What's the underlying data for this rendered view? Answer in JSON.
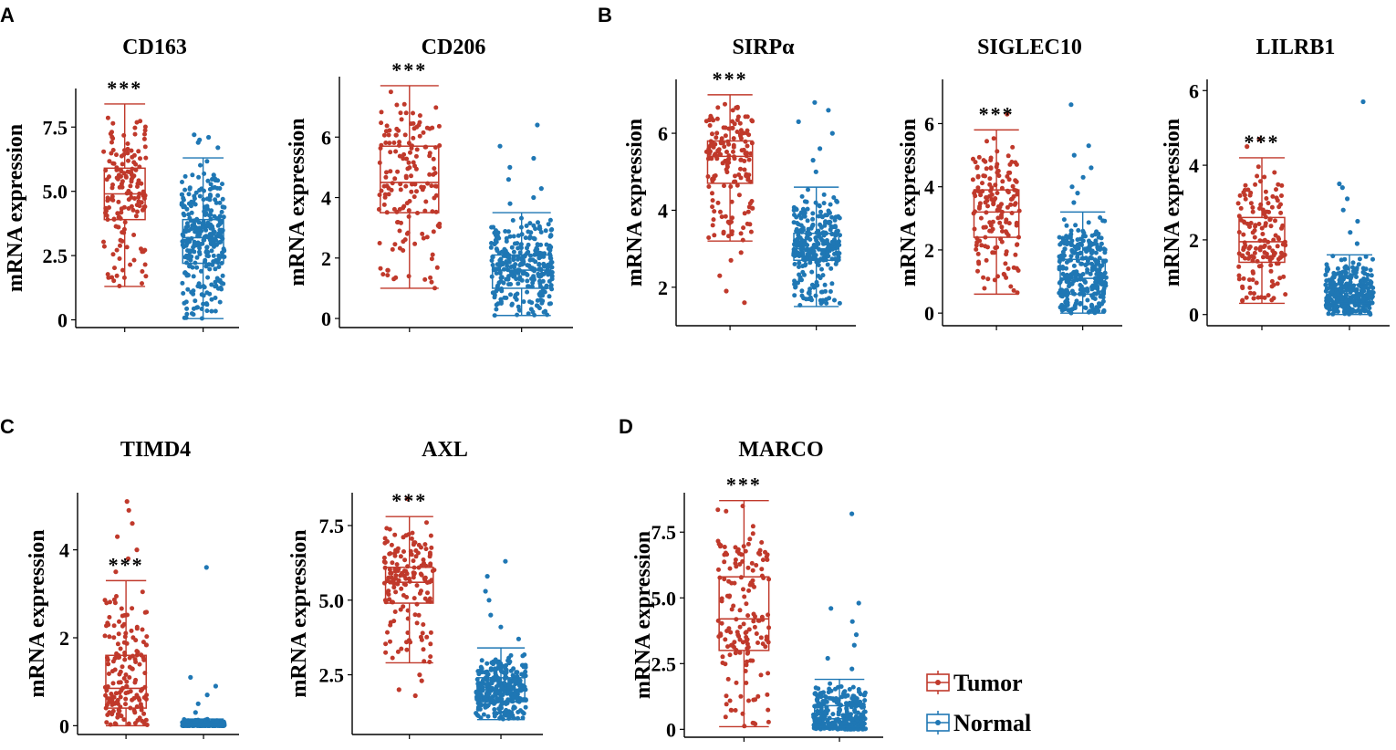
{
  "panels": [
    {
      "letter": "A"
    },
    {
      "letter": "B"
    },
    {
      "letter": "C"
    },
    {
      "letter": "D"
    }
  ],
  "legend": {
    "items": [
      {
        "label": "Tumor",
        "color": "#c0392b"
      },
      {
        "label": "Normal",
        "color": "#1f77b4"
      }
    ]
  },
  "colors": {
    "tumor": "#c0392b",
    "normal": "#1f77b4"
  },
  "chart_data": [
    {
      "type": "box",
      "panel": "A",
      "title": "CD163",
      "ylabel": "mRNA expression",
      "xlabel": "",
      "ylim": [
        -0.3,
        9.0
      ],
      "yticks": [
        0,
        2.5,
        5.0,
        7.5
      ],
      "ytick_labels": [
        "0",
        "2.5",
        "5.0",
        "7.5"
      ],
      "significance": "***",
      "series": [
        {
          "name": "Tumor",
          "min": 1.3,
          "q1": 3.9,
          "median": 4.9,
          "q3": 5.9,
          "max": 8.4,
          "outliers": []
        },
        {
          "name": "Normal",
          "min": 0.05,
          "q1": 2.2,
          "median": 3.2,
          "q3": 3.9,
          "max": 6.3,
          "outliers": [
            6.7,
            6.9,
            7.0,
            7.1,
            7.2
          ]
        }
      ]
    },
    {
      "type": "box",
      "panel": "A",
      "title": "CD206",
      "ylabel": "mRNA expression",
      "xlabel": "",
      "ylim": [
        -0.3,
        8.0
      ],
      "yticks": [
        0,
        2,
        4,
        6
      ],
      "ytick_labels": [
        "0",
        "2",
        "4",
        "6"
      ],
      "significance": "***",
      "series": [
        {
          "name": "Tumor",
          "min": 1.0,
          "q1": 3.5,
          "median": 4.5,
          "q3": 5.7,
          "max": 7.7,
          "outliers": []
        },
        {
          "name": "Normal",
          "min": 0.1,
          "q1": 1.0,
          "median": 1.6,
          "q3": 2.1,
          "max": 3.5,
          "outliers": [
            3.8,
            4.0,
            4.3,
            4.6,
            5.0,
            5.3,
            5.7,
            6.4
          ]
        }
      ]
    },
    {
      "type": "box",
      "panel": "B",
      "title": "SIRPα",
      "ylabel": "mRNA expression",
      "xlabel": "",
      "ylim": [
        1.0,
        7.4
      ],
      "yticks": [
        2,
        4,
        6
      ],
      "ytick_labels": [
        "2",
        "4",
        "6"
      ],
      "significance": "***",
      "series": [
        {
          "name": "Tumor",
          "min": 3.2,
          "q1": 4.7,
          "median": 5.4,
          "q3": 5.8,
          "max": 7.0,
          "outliers": [
            1.6,
            1.9,
            2.3,
            2.7,
            2.9
          ]
        },
        {
          "name": "Normal",
          "min": 1.5,
          "q1": 2.7,
          "median": 3.0,
          "q3": 3.4,
          "max": 4.6,
          "outliers": [
            5.0,
            5.3,
            5.6,
            6.0,
            6.3,
            6.6,
            6.8
          ]
        }
      ]
    },
    {
      "type": "box",
      "panel": "B",
      "title": "SIGLEC10",
      "ylabel": "mRNA expression",
      "xlabel": "",
      "ylim": [
        -0.4,
        7.4
      ],
      "yticks": [
        0,
        2,
        4,
        6
      ],
      "ytick_labels": [
        "0",
        "2",
        "4",
        "6"
      ],
      "significance": "***",
      "series": [
        {
          "name": "Tumor",
          "min": 0.6,
          "q1": 2.4,
          "median": 3.2,
          "q3": 3.9,
          "max": 5.8,
          "outliers": [
            6.3
          ]
        },
        {
          "name": "Normal",
          "min": 0.0,
          "q1": 0.6,
          "median": 1.1,
          "q3": 1.7,
          "max": 3.2,
          "outliers": [
            3.5,
            3.8,
            4.0,
            4.3,
            4.6,
            5.0,
            5.3,
            6.6
          ]
        }
      ]
    },
    {
      "type": "box",
      "panel": "B",
      "title": "LILRB1",
      "ylabel": "mRNA expression",
      "xlabel": "",
      "ylim": [
        -0.3,
        6.3
      ],
      "yticks": [
        0,
        2,
        4,
        6
      ],
      "ytick_labels": [
        "0",
        "2",
        "4",
        "6"
      ],
      "significance": "***",
      "series": [
        {
          "name": "Tumor",
          "min": 0.3,
          "q1": 1.4,
          "median": 1.95,
          "q3": 2.6,
          "max": 4.2,
          "outliers": [
            4.5,
            4.7
          ]
        },
        {
          "name": "Normal",
          "min": 0.0,
          "q1": 0.3,
          "median": 0.5,
          "q3": 0.8,
          "max": 1.6,
          "outliers": [
            1.9,
            2.2,
            2.5,
            2.8,
            3.1,
            3.4,
            3.5,
            5.7
          ]
        }
      ]
    },
    {
      "type": "box",
      "panel": "C",
      "title": "TIMD4",
      "ylabel": "mRNA expression",
      "xlabel": "",
      "ylim": [
        -0.2,
        5.3
      ],
      "yticks": [
        0,
        2,
        4
      ],
      "ytick_labels": [
        "0",
        "2",
        "4"
      ],
      "significance": "***",
      "series": [
        {
          "name": "Tumor",
          "min": 0.0,
          "q1": 0.4,
          "median": 0.85,
          "q3": 1.6,
          "max": 3.3,
          "outliers": [
            3.5,
            3.8,
            4.0,
            4.3,
            4.6,
            4.9,
            5.1
          ]
        },
        {
          "name": "Normal",
          "min": 0.0,
          "q1": 0.0,
          "median": 0.02,
          "q3": 0.05,
          "max": 0.15,
          "outliers": [
            0.3,
            0.5,
            0.7,
            0.9,
            1.1,
            3.6
          ]
        }
      ]
    },
    {
      "type": "box",
      "panel": "C",
      "title": "AXL",
      "ylabel": "mRNA expression",
      "xlabel": "",
      "ylim": [
        0.5,
        8.6
      ],
      "yticks": [
        2.5,
        5.0,
        7.5
      ],
      "ytick_labels": [
        "2.5",
        "5.0",
        "7.5"
      ],
      "significance": "***",
      "series": [
        {
          "name": "Tumor",
          "min": 2.9,
          "q1": 4.9,
          "median": 5.6,
          "q3": 6.1,
          "max": 7.8,
          "outliers": [
            1.8,
            2.0,
            2.3,
            2.5,
            8.4
          ]
        },
        {
          "name": "Normal",
          "min": 1.0,
          "q1": 1.6,
          "median": 2.0,
          "q3": 2.4,
          "max": 3.4,
          "outliers": [
            3.7,
            4.1,
            4.5,
            5.0,
            5.3,
            5.8,
            6.3
          ]
        }
      ]
    },
    {
      "type": "box",
      "panel": "D",
      "title": "MARCO",
      "ylabel": "mRNA expression",
      "xlabel": "",
      "ylim": [
        -0.3,
        9.0
      ],
      "yticks": [
        0,
        2.5,
        5.0,
        7.5
      ],
      "ytick_labels": [
        "0",
        "2.5",
        "5.0",
        "7.5"
      ],
      "significance": "***",
      "series": [
        {
          "name": "Tumor",
          "min": 0.1,
          "q1": 3.0,
          "median": 4.2,
          "q3": 5.8,
          "max": 8.7,
          "outliers": []
        },
        {
          "name": "Normal",
          "min": 0.0,
          "q1": 0.1,
          "median": 0.4,
          "q3": 0.9,
          "max": 1.9,
          "outliers": [
            2.3,
            2.7,
            3.2,
            3.6,
            4.1,
            4.6,
            4.8,
            8.2
          ]
        }
      ]
    }
  ]
}
